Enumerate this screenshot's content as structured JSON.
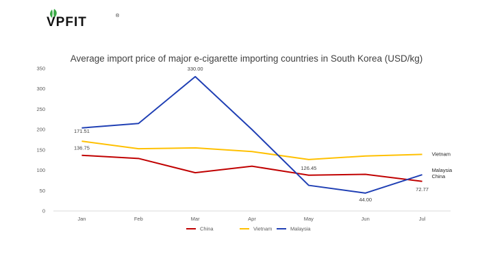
{
  "brand": {
    "name": "VPFIT",
    "mark": "®"
  },
  "colors": {
    "China": "#c00000",
    "Vietnam": "#ffc000",
    "Malaysia": "#1f3fb4",
    "logo_leaf": "#39a845"
  },
  "chart_data": {
    "type": "line",
    "title": "Average import price of major e-cigarette importing countries in South Korea (USD/kg)",
    "xlabel": "",
    "ylabel": "",
    "categories": [
      "Jan",
      "Feb",
      "Mar",
      "Apr",
      "May",
      "Jun",
      "Jul"
    ],
    "ylim": [
      0,
      350
    ],
    "yticks": [
      0,
      50,
      100,
      150,
      200,
      250,
      300,
      350
    ],
    "grid": false,
    "legend": "bottom",
    "series": [
      {
        "name": "China",
        "values": [
          136.75,
          129,
          94,
          110,
          88,
          90,
          72.77
        ]
      },
      {
        "name": "Vietnam",
        "values": [
          171.51,
          153,
          155,
          146,
          126.45,
          135,
          139
        ]
      },
      {
        "name": "Malaysia",
        "values": [
          204,
          215,
          330.0,
          200,
          63,
          44.0,
          89
        ]
      }
    ],
    "data_labels": [
      {
        "series": "Vietnam",
        "index": 0,
        "text": "171.51"
      },
      {
        "series": "China",
        "index": 0,
        "text": "136.75"
      },
      {
        "series": "Malaysia",
        "index": 2,
        "text": "330.00"
      },
      {
        "series": "Vietnam",
        "index": 4,
        "text": "126.45"
      },
      {
        "series": "Malaysia",
        "index": 5,
        "text": "44.00"
      },
      {
        "series": "China",
        "index": 6,
        "text": "72.77"
      }
    ],
    "end_labels": [
      "Vietnam",
      "Malaysia",
      "China"
    ]
  }
}
